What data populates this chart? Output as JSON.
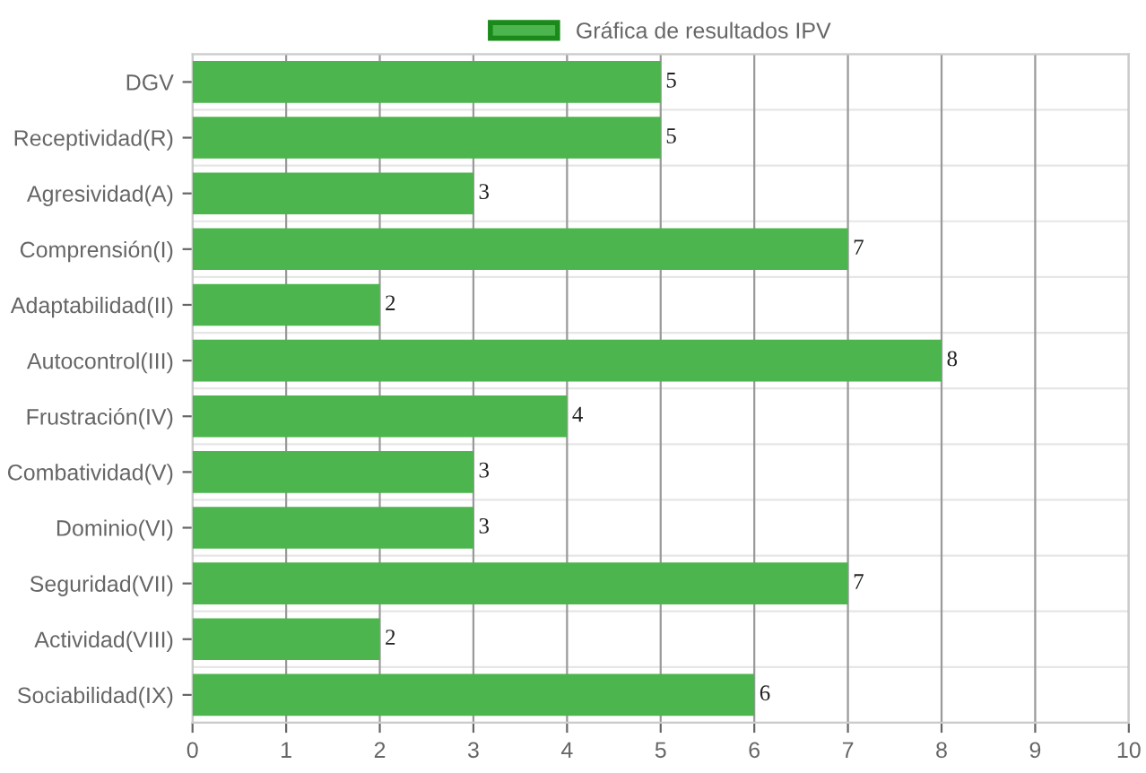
{
  "chart_data": {
    "type": "bar",
    "orientation": "horizontal",
    "categories": [
      "DGV",
      "Receptividad(R)",
      "Agresividad(A)",
      "Comprensión(I)",
      "Adaptabilidad(II)",
      "Autocontrol(III)",
      "Frustración(IV)",
      "Combatividad(V)",
      "Dominio(VI)",
      "Seguridad(VII)",
      "Actividad(VIII)",
      "Sociabilidad(IX)"
    ],
    "series": [
      {
        "name": "Gráfica de resultados IPV",
        "color": "#4db54d",
        "values": [
          5,
          5,
          3,
          7,
          2,
          8,
          4,
          3,
          3,
          7,
          2,
          6
        ]
      }
    ],
    "xlim": [
      0,
      10
    ],
    "xticks": [
      0,
      1,
      2,
      3,
      4,
      5,
      6,
      7,
      8,
      9,
      10
    ],
    "grid": true,
    "legend": "top",
    "data_labels": true
  }
}
